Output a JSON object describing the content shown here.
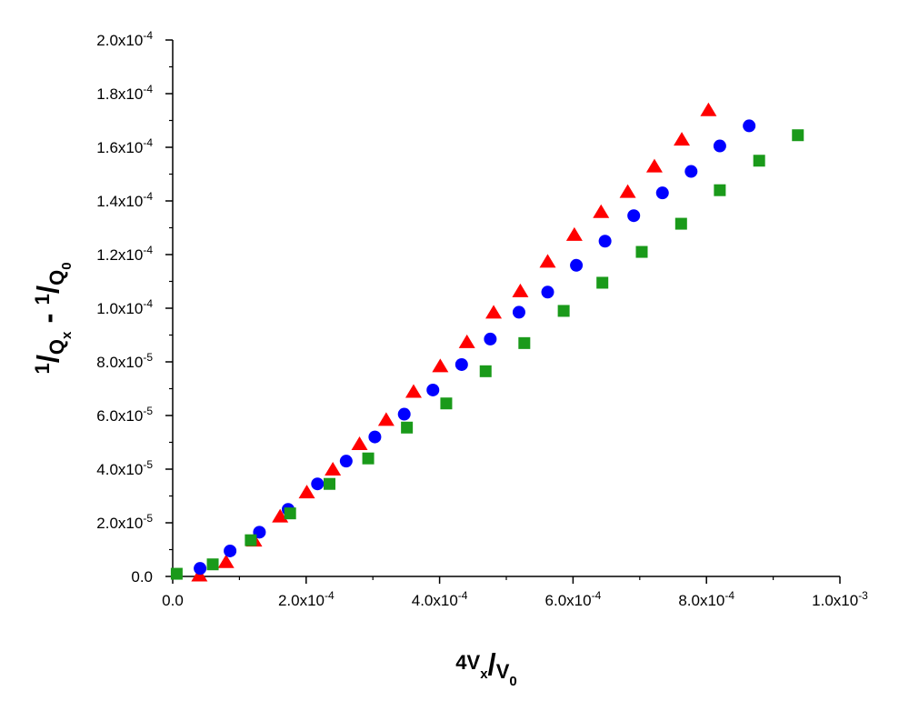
{
  "chart_data": {
    "type": "scatter",
    "title": "",
    "xlabel": "4Vx/V0",
    "ylabel": "1/Qx - 1/Q0",
    "xlim": [
      0,
      0.001
    ],
    "ylim": [
      0,
      0.0002
    ],
    "grid": false,
    "x_ticks": [
      {
        "value": 0.0,
        "mant": "0.0",
        "exp": ""
      },
      {
        "value": 0.0002,
        "mant": "2.0x10",
        "exp": "-4"
      },
      {
        "value": 0.0004,
        "mant": "4.0x10",
        "exp": "-4"
      },
      {
        "value": 0.0006,
        "mant": "6.0x10",
        "exp": "-4"
      },
      {
        "value": 0.0008,
        "mant": "8.0x10",
        "exp": "-4"
      },
      {
        "value": 0.001,
        "mant": "1.0x10",
        "exp": "-3"
      }
    ],
    "y_ticks": [
      {
        "value": 0.0,
        "mant": "0.0",
        "exp": ""
      },
      {
        "value": 2e-05,
        "mant": "2.0x10",
        "exp": "-5"
      },
      {
        "value": 4e-05,
        "mant": "4.0x10",
        "exp": "-5"
      },
      {
        "value": 6e-05,
        "mant": "6.0x10",
        "exp": "-5"
      },
      {
        "value": 8e-05,
        "mant": "8.0x10",
        "exp": "-5"
      },
      {
        "value": 0.0001,
        "mant": "1.0x10",
        "exp": "-4"
      },
      {
        "value": 0.00012,
        "mant": "1.2x10",
        "exp": "-4"
      },
      {
        "value": 0.00014,
        "mant": "1.4x10",
        "exp": "-4"
      },
      {
        "value": 0.00016,
        "mant": "1.6x10",
        "exp": "-4"
      },
      {
        "value": 0.00018,
        "mant": "1.8x10",
        "exp": "-4"
      },
      {
        "value": 0.0002,
        "mant": "2.0x10",
        "exp": "-4"
      }
    ],
    "series": [
      {
        "marker": "triangle",
        "color": "#ff0000",
        "points": [
          [
            4e-05,
            5e-07
          ],
          [
            8e-05,
            5.5e-06
          ],
          [
            0.000122,
            1.35e-05
          ],
          [
            0.000161,
            2.25e-05
          ],
          [
            0.000201,
            3.15e-05
          ],
          [
            0.00024,
            4e-05
          ],
          [
            0.00028,
            4.95e-05
          ],
          [
            0.00032,
            5.85e-05
          ],
          [
            0.000361,
            6.9e-05
          ],
          [
            0.000401,
            7.85e-05
          ],
          [
            0.000441,
            8.75e-05
          ],
          [
            0.000481,
            9.85e-05
          ],
          [
            0.000521,
            0.0001065
          ],
          [
            0.000562,
            0.0001175
          ],
          [
            0.000602,
            0.0001275
          ],
          [
            0.000642,
            0.000136
          ],
          [
            0.000682,
            0.0001435
          ],
          [
            0.000722,
            0.000153
          ],
          [
            0.000763,
            0.000163
          ],
          [
            0.000803,
            0.000174
          ]
        ]
      },
      {
        "marker": "circle",
        "color": "#0000ff",
        "points": [
          [
            4.1e-05,
            3e-06
          ],
          [
            8.6e-05,
            9.5e-06
          ],
          [
            0.00013,
            1.65e-05
          ],
          [
            0.000173,
            2.5e-05
          ],
          [
            0.000217,
            3.45e-05
          ],
          [
            0.00026,
            4.3e-05
          ],
          [
            0.000303,
            5.2e-05
          ],
          [
            0.000347,
            6.05e-05
          ],
          [
            0.00039,
            6.95e-05
          ],
          [
            0.000433,
            7.9e-05
          ],
          [
            0.000476,
            8.85e-05
          ],
          [
            0.000519,
            9.85e-05
          ],
          [
            0.000562,
            0.000106
          ],
          [
            0.000605,
            0.000116
          ],
          [
            0.000648,
            0.000125
          ],
          [
            0.000691,
            0.0001345
          ],
          [
            0.000734,
            0.000143
          ],
          [
            0.000777,
            0.000151
          ],
          [
            0.00082,
            0.0001605
          ],
          [
            0.000864,
            0.000168
          ]
        ]
      },
      {
        "marker": "square",
        "color": "#1a9a1a",
        "points": [
          [
            6e-06,
            1e-06
          ],
          [
            6e-05,
            4.5e-06
          ],
          [
            0.000117,
            1.35e-05
          ],
          [
            0.000176,
            2.35e-05
          ],
          [
            0.000235,
            3.45e-05
          ],
          [
            0.000293,
            4.4e-05
          ],
          [
            0.000351,
            5.55e-05
          ],
          [
            0.00041,
            6.45e-05
          ],
          [
            0.000469,
            7.65e-05
          ],
          [
            0.000527,
            8.7e-05
          ],
          [
            0.000586,
            9.9e-05
          ],
          [
            0.000644,
            0.0001095
          ],
          [
            0.000703,
            0.000121
          ],
          [
            0.000762,
            0.0001315
          ],
          [
            0.00082,
            0.000144
          ],
          [
            0.000879,
            0.000155
          ],
          [
            0.000937,
            0.0001645
          ]
        ]
      }
    ]
  }
}
